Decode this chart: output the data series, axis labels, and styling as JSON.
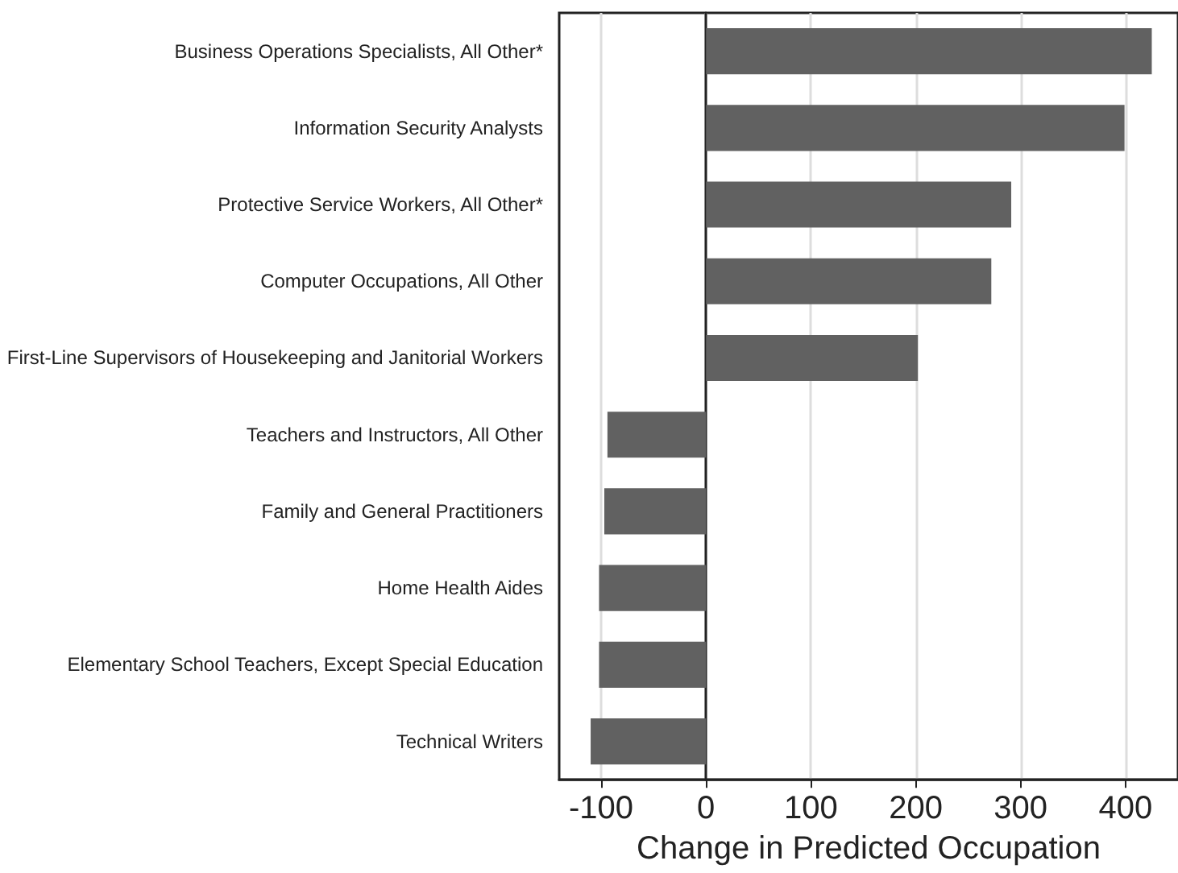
{
  "chart_data": {
    "type": "bar",
    "orientation": "horizontal",
    "xlabel": "Change in Predicted Occupation",
    "categories": [
      "Business Operations Specialists, All Other*",
      "Information Security Analysts",
      "Protective Service Workers, All Other*",
      "Computer Occupations, All Other",
      "First-Line Supervisors of Housekeeping and Janitorial Workers",
      "Teachers and Instructors, All Other",
      "Family and General Practitioners",
      "Home Health Aides",
      "Elementary School Teachers, Except Special Education",
      "Technical Writers"
    ],
    "values": [
      425,
      399,
      291,
      272,
      202,
      -94,
      -97,
      -102,
      -102,
      -110
    ],
    "color": "#616161",
    "xlim": [
      -140,
      450
    ],
    "xticks": [
      -100,
      0,
      100,
      200,
      300,
      400
    ],
    "grid": "x"
  }
}
